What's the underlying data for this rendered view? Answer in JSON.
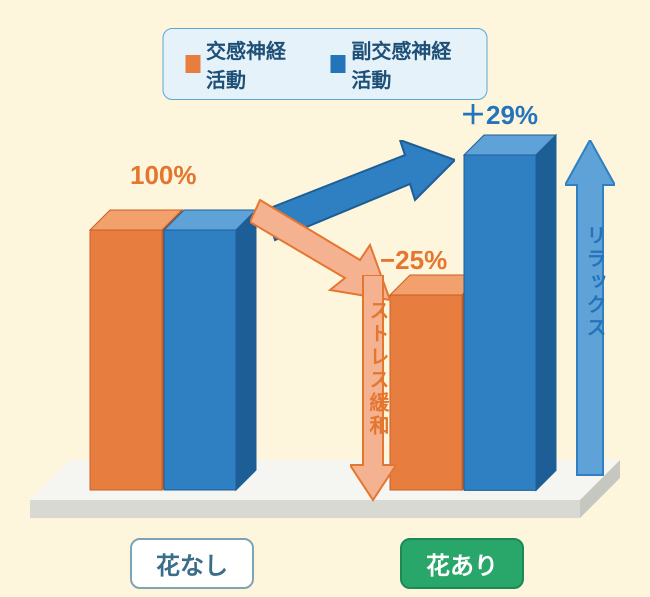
{
  "type": "bar-3d-infographic",
  "background_color": "#fdf6dc",
  "legend": {
    "bg": "#e5f2f9",
    "border": "#5aa7d6",
    "text_color": "#1e4f77",
    "items": [
      {
        "color": "#e77d3f",
        "label": "交感神経活動"
      },
      {
        "color": "#2474bb",
        "label": "副交感神経活動"
      }
    ]
  },
  "floor": {
    "top_color": "#f5f5f2",
    "front_color": "#d9d9d4",
    "shadow": "#c7c7c1"
  },
  "groups": [
    {
      "key": "no_flower",
      "label": "花なし",
      "label_bg": "#ffffff",
      "label_border": "#7fa3b5",
      "label_text": "#3a6d8a",
      "bars": [
        {
          "series": 0,
          "value": 100
        },
        {
          "series": 1,
          "value": 100
        }
      ],
      "value_label": "100%",
      "value_label_color": "#e5762f"
    },
    {
      "key": "with_flower",
      "label": "花あり",
      "label_bg": "#29a66a",
      "label_border": "#1d8a55",
      "label_text": "#ffffff",
      "bars": [
        {
          "series": 0,
          "value": 75
        },
        {
          "series": 1,
          "value": 129
        }
      ],
      "value_labels": [
        {
          "text": "−25%",
          "color": "#e5762f"
        },
        {
          "text": "＋29%",
          "color": "#2474bb"
        }
      ]
    }
  ],
  "series_colors": [
    {
      "front": "#e77d3f",
      "top": "#f2a06c",
      "side": "#c85f25",
      "outline": "#c85f25"
    },
    {
      "front": "#2f7fc3",
      "top": "#5ea2d8",
      "side": "#1e5e96",
      "outline": "#1e5e96"
    }
  ],
  "arrows": {
    "blue_diag": {
      "fill": "#2f7fc3",
      "outline": "#1e5e96"
    },
    "orange_diag": {
      "fill": "#f4b291",
      "outline": "#e5762f"
    },
    "blue_up": {
      "fill": "#5ea2d8",
      "outline": "#2f7fc3",
      "label": "リラックス",
      "label_color": "#2474bb"
    },
    "orange_down": {
      "fill": "#f4b291",
      "outline": "#e5762f",
      "label": "ストレス緩和",
      "label_color": "#e5762f"
    }
  },
  "chart_scale": {
    "baseline_value": 100,
    "pixels_per_unit": 2.6
  }
}
